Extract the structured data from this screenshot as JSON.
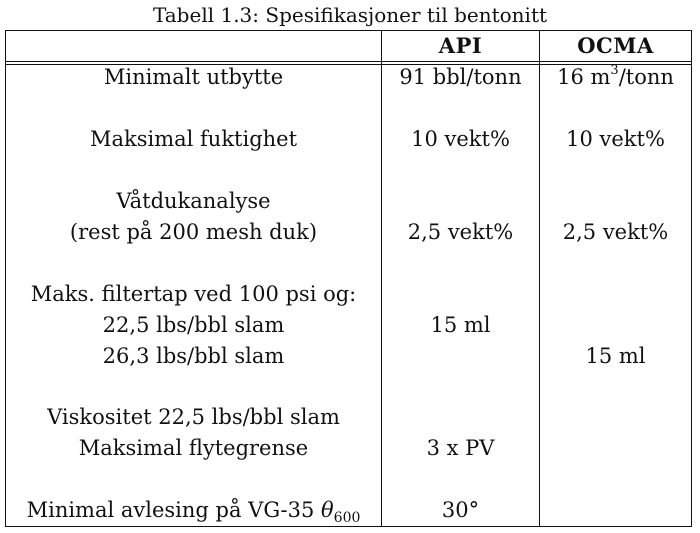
{
  "caption": "Tabell 1.3: Spesifikasjoner til bentonitt",
  "header": {
    "col1": "",
    "col2": "API",
    "col3": "OCMA"
  },
  "rows": [
    {
      "label": [
        "Minimalt utbytte"
      ],
      "api": "91 bbl/tonn",
      "ocma_base": "16 m",
      "ocma_sup": "3",
      "ocma_rest": "/tonn"
    },
    {
      "label": [
        "Maksimal fuktighet"
      ],
      "api": "10 vekt%",
      "ocma": "10 vekt%"
    },
    {
      "label": [
        "Våtdukanalyse",
        "(rest på 200 mesh duk)"
      ],
      "api": "2,5 vekt%",
      "ocma": "2,5 vekt%"
    },
    {
      "label": [
        "Maks. filtertap ved 100 psi og:",
        "22,5 lbs/bbl slam",
        "26,3 lbs/bbl slam"
      ],
      "api": "15 ml",
      "ocma": "15 ml"
    },
    {
      "label": [
        "Viskositet 22,5 lbs/bbl slam",
        "Maksimal flytegrense"
      ],
      "api": "3 x PV",
      "ocma": ""
    },
    {
      "label_base": "Minimal avlesing på VG-35 ",
      "label_symbol": "θ",
      "label_sub": "600",
      "api": "30°",
      "ocma": ""
    }
  ]
}
